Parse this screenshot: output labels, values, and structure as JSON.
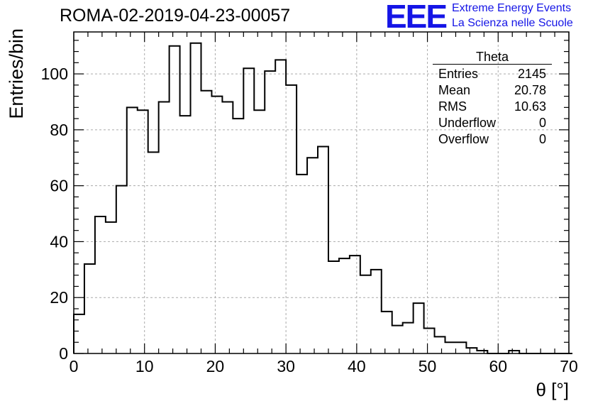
{
  "title": "ROMA-02-2019-04-23-00057",
  "logo": {
    "mark": "EEE",
    "line1": "Extreme Energy Events",
    "line2": "La Scienza nelle Scuole",
    "color": "#1515e6"
  },
  "stats": {
    "name": "Theta",
    "rows": [
      {
        "label": "Entries",
        "value": "2145"
      },
      {
        "label": "Mean",
        "value": "20.78"
      },
      {
        "label": "RMS",
        "value": "10.63"
      },
      {
        "label": "Underflow",
        "value": "0"
      },
      {
        "label": "Overflow",
        "value": "0"
      }
    ]
  },
  "chart_data": {
    "type": "histogram",
    "title": "ROMA-02-2019-04-23-00057",
    "xlabel": "θ [°]",
    "ylabel": "Entries/bin",
    "xlim": [
      0,
      70
    ],
    "ylim": [
      0,
      115
    ],
    "bin_width": 1.5,
    "bin_start": 0,
    "values": [
      14,
      32,
      49,
      47,
      60,
      88,
      87,
      72,
      90,
      110,
      85,
      111,
      94,
      92,
      90,
      84,
      102,
      87,
      101,
      105,
      96,
      64,
      70,
      74,
      33,
      34,
      35,
      28,
      30,
      15,
      10,
      11,
      18,
      9,
      6,
      4,
      4,
      2,
      1,
      0,
      0,
      1,
      0,
      0,
      0,
      0,
      0
    ],
    "x_ticks": [
      0,
      10,
      20,
      30,
      40,
      50,
      60,
      70
    ],
    "y_ticks": [
      0,
      20,
      40,
      60,
      80,
      100
    ],
    "grid": true,
    "line_color": "#000000"
  }
}
